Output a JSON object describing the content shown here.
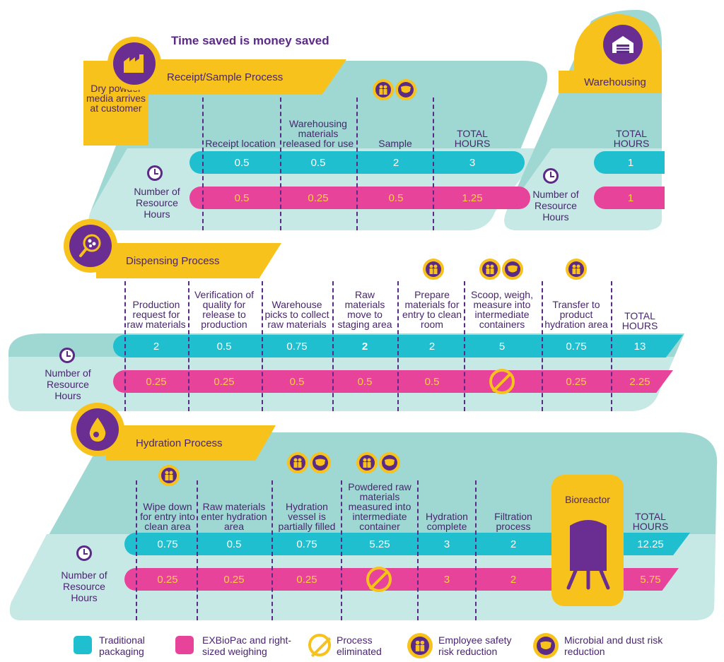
{
  "title": "Time saved is money saved",
  "row_label": "Number of Resource Hours",
  "total_hours_label": "TOTAL HOURS",
  "receipt": {
    "banner": "Receipt/Sample Process",
    "intro": "Dry powder media arrives at customer",
    "columns": [
      "Receipt location",
      "Warehousing materials released for use",
      "Sample",
      "TOTAL HOURS"
    ],
    "traditional": [
      "0.5",
      "0.5",
      "2",
      "3"
    ],
    "exbiopac": [
      "0.5",
      "0.25",
      "0.5",
      "1.25"
    ]
  },
  "warehousing": {
    "banner": "Warehousing",
    "columns": [
      "TOTAL HOURS"
    ],
    "traditional": [
      "1"
    ],
    "exbiopac": [
      "1"
    ]
  },
  "dispensing": {
    "banner": "Dispensing Process",
    "columns": [
      "Production request for raw materials",
      "Verification of quality for release to production",
      "Warehouse picks to collect raw materials",
      "Raw materials move to staging area",
      "Prepare materials for entry to clean room",
      "Scoop, weigh, measure into intermediate containers",
      "Transfer to product hydration area",
      "TOTAL HOURS"
    ],
    "traditional": [
      "2",
      "0.5",
      "0.75",
      "2",
      "2",
      "5",
      "0.75",
      "13"
    ],
    "exbiopac": [
      "0.25",
      "0.25",
      "0.5",
      "0.5",
      "0.5",
      "",
      "0.25",
      "2.25"
    ]
  },
  "hydration": {
    "banner": "Hydration Process",
    "columns": [
      "Wipe down for entry into clean area",
      "Raw materials enter hydration area",
      "Hydration vessel is partially filled",
      "Powdered raw materials measured into intermediate container",
      "Hydration complete",
      "Filtration process",
      "Bioreactor",
      "TOTAL HOURS"
    ],
    "traditional": [
      "0.75",
      "0.5",
      "0.75",
      "5.25",
      "3",
      "2",
      "",
      "12.25"
    ],
    "exbiopac": [
      "0.25",
      "0.25",
      "0.25",
      "",
      "3",
      "2",
      "",
      "5.75"
    ]
  },
  "legend": {
    "traditional": "Traditional packaging",
    "exbiopac": "EXBioPac and right-sized weighing",
    "eliminated": "Process eliminated",
    "employee": "Employee safety risk reduction",
    "microbial": "Microbial and dust risk reduction"
  },
  "colors": {
    "teal": "#1fbfcf",
    "pink": "#e8439a",
    "yellow": "#f7c21b",
    "purple": "#5b2a86",
    "panel": "#9fd8d3",
    "panel_light": "#c6e9e6"
  },
  "icons": [
    "factory-icon",
    "warehouse-icon",
    "dispense-icon",
    "droplet-icon",
    "clock-icon",
    "employee-safety-icon",
    "mask-icon",
    "no-entry-icon",
    "bioreactor-icon"
  ]
}
